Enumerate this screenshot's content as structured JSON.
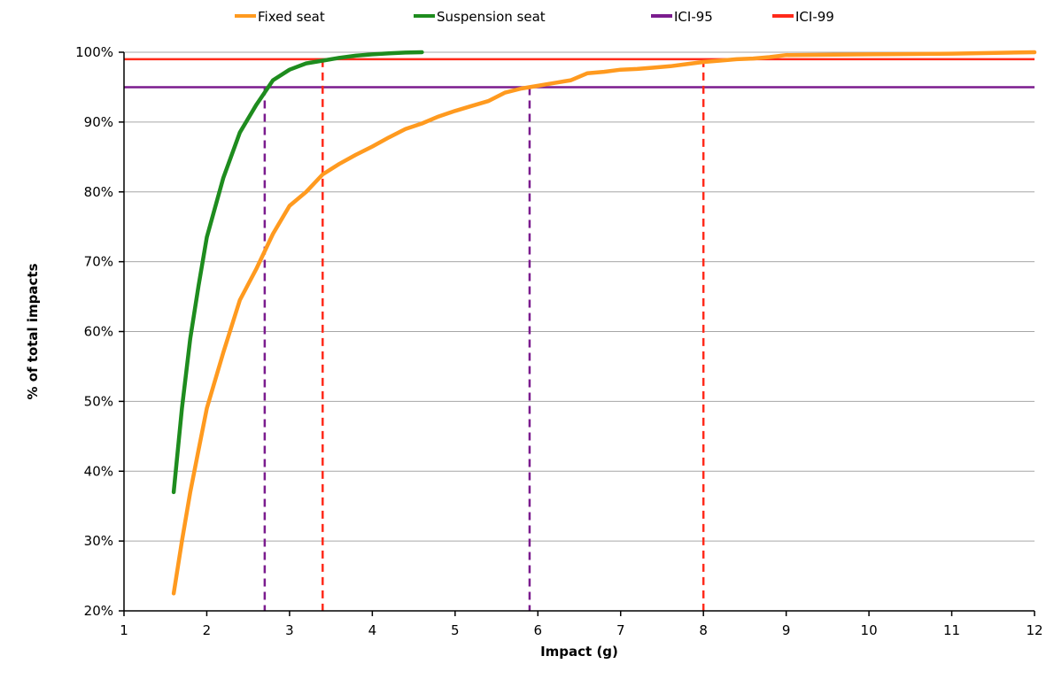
{
  "chart_data": {
    "type": "line",
    "title": "",
    "xlabel": "Impact (g)",
    "ylabel": "% of total impacts",
    "xlim": [
      1,
      12
    ],
    "ylim": [
      20,
      100
    ],
    "x_ticks": [
      1,
      2,
      3,
      4,
      5,
      6,
      7,
      8,
      9,
      10,
      11,
      12
    ],
    "y_ticks": [
      20,
      30,
      40,
      50,
      60,
      70,
      80,
      90,
      100
    ],
    "y_tick_labels": [
      "20%",
      "30%",
      "40%",
      "50%",
      "60%",
      "70%",
      "80%",
      "90%",
      "100%"
    ],
    "grid": "horizontal",
    "legend_position": "top",
    "series": [
      {
        "name": "Fixed seat",
        "color": "#ff9a1f",
        "x": [
          1.6,
          1.7,
          1.8,
          1.9,
          2.0,
          2.2,
          2.4,
          2.6,
          2.8,
          3.0,
          3.2,
          3.4,
          3.6,
          3.8,
          4.0,
          4.2,
          4.4,
          4.6,
          4.8,
          5.0,
          5.2,
          5.4,
          5.6,
          5.8,
          6.0,
          6.2,
          6.4,
          6.6,
          6.8,
          7.0,
          7.2,
          7.4,
          7.6,
          7.8,
          8.0,
          8.2,
          8.4,
          8.6,
          8.8,
          9.0,
          10.0,
          11.0,
          12.0
        ],
        "y": [
          22.5,
          30,
          37,
          43,
          49,
          57,
          64.5,
          69,
          74,
          78,
          80,
          82.5,
          84,
          85.3,
          86.5,
          87.8,
          89,
          89.8,
          90.8,
          91.6,
          92.3,
          93,
          94.2,
          94.8,
          95.2,
          95.6,
          96,
          97,
          97.2,
          97.5,
          97.6,
          97.8,
          98,
          98.3,
          98.6,
          98.8,
          99,
          99.1,
          99.3,
          99.6,
          99.7,
          99.8,
          100
        ]
      },
      {
        "name": "Suspension seat",
        "color": "#1e8c1e",
        "x": [
          1.6,
          1.7,
          1.8,
          1.9,
          2.0,
          2.2,
          2.4,
          2.6,
          2.8,
          3.0,
          3.2,
          3.4,
          3.6,
          3.8,
          4.0,
          4.2,
          4.4,
          4.6
        ],
        "y": [
          37,
          49,
          59,
          66.5,
          73.5,
          82,
          88.5,
          92.5,
          96,
          97.5,
          98.4,
          98.8,
          99.2,
          99.5,
          99.7,
          99.85,
          99.95,
          100
        ]
      }
    ],
    "reference_lines": [
      {
        "name": "ICI-95",
        "color": "#7b1c8e",
        "y": 95,
        "x_markers": [
          2.7,
          5.9
        ]
      },
      {
        "name": "ICI-99",
        "color": "#ff2a1a",
        "y": 99,
        "x_markers": [
          3.4,
          8.0
        ]
      }
    ]
  }
}
